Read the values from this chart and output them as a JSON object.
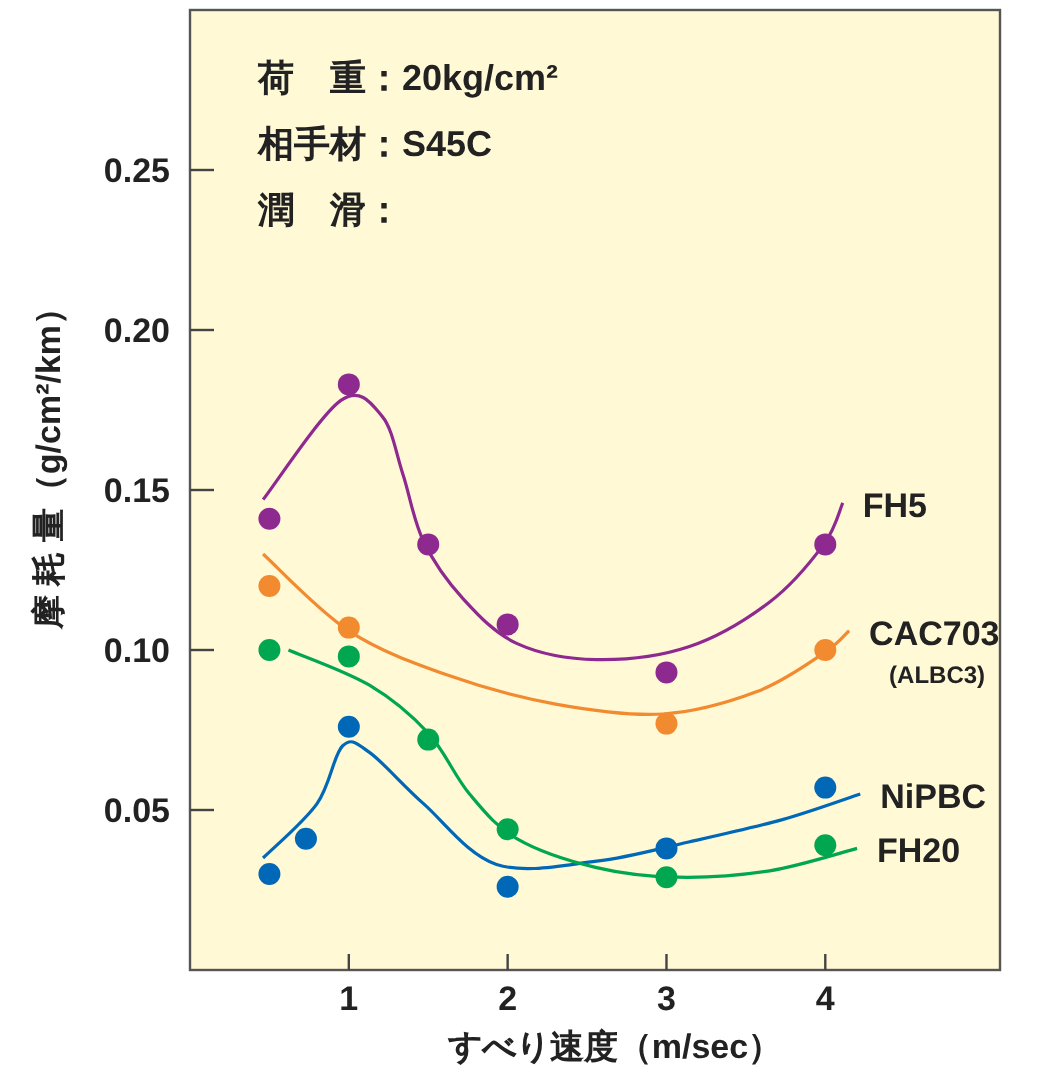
{
  "chart_data": {
    "type": "scatter",
    "xlabel": "すべり速度（m/sec）",
    "ylabel": "摩 耗 量（g/cm²/km）",
    "annotations": [
      "荷　重：20kg/cm²",
      "相手材：S45C",
      "潤　滑："
    ],
    "xlim": [
      0,
      5.1
    ],
    "ylim": [
      0,
      0.3
    ],
    "xticks": [
      1,
      2,
      3,
      4
    ],
    "yticks": [
      0.05,
      {
        "value": 0.1,
        "label": "0.10"
      },
      0.15,
      {
        "value": 0.2,
        "label": "0.20"
      },
      0.25
    ],
    "grid": false,
    "legend": false,
    "marker": "circle",
    "series": [
      {
        "color": "#8e2a8f",
        "x": [
          0.5,
          1,
          1.5,
          2,
          3,
          4
        ],
        "values": [
          0.141,
          0.183,
          0.133,
          0.108,
          0.093,
          0.133
        ]
      },
      {
        "type": "line",
        "marker": "none",
        "name": "FH5",
        "color": "#8e2a8f",
        "x": [
          0.46,
          0.95,
          1.21,
          1.34,
          1.47,
          1.72,
          2.06,
          2.56,
          3.14,
          3.65,
          3.99,
          4.11
        ],
        "values": [
          0.147,
          0.178,
          0.173,
          0.155,
          0.134,
          0.116,
          0.102,
          0.097,
          0.101,
          0.115,
          0.133,
          0.146
        ]
      },
      {
        "color": "#f28a30",
        "x": [
          0.5,
          1,
          3,
          4
        ],
        "values": [
          0.12,
          0.107,
          0.077,
          0.1
        ]
      },
      {
        "type": "line",
        "marker": "none",
        "name": "CAC703 (ALBC3)",
        "color": "#f28a30",
        "x": [
          0.46,
          1.0,
          1.63,
          2.31,
          2.98,
          3.57,
          3.99,
          4.15
        ],
        "values": [
          0.13,
          0.106,
          0.092,
          0.083,
          0.08,
          0.087,
          0.099,
          0.106
        ]
      },
      {
        "color": "#0068b7",
        "x": [
          0.5,
          0.73,
          1,
          2,
          3,
          4
        ],
        "values": [
          0.03,
          0.041,
          0.076,
          0.026,
          0.038,
          0.057
        ]
      },
      {
        "type": "line",
        "marker": "none",
        "name": "NiPBC",
        "color": "#0068b7",
        "x": [
          0.46,
          0.8,
          0.96,
          1.13,
          1.47,
          1.93,
          2.56,
          3.14,
          3.73,
          4.22
        ],
        "values": [
          0.035,
          0.052,
          0.07,
          0.068,
          0.052,
          0.033,
          0.034,
          0.04,
          0.047,
          0.055
        ]
      },
      {
        "color": "#00a650",
        "x": [
          0.5,
          1,
          1.5,
          2,
          3,
          4
        ],
        "values": [
          0.1,
          0.098,
          0.072,
          0.044,
          0.029,
          0.039
        ]
      },
      {
        "type": "line",
        "marker": "none",
        "name": "FH20",
        "color": "#00a650",
        "x": [
          0.62,
          1.13,
          1.5,
          1.76,
          2.06,
          2.56,
          3.07,
          3.65,
          4.2
        ],
        "values": [
          0.1,
          0.089,
          0.074,
          0.055,
          0.041,
          0.032,
          0.029,
          0.031,
          0.038
        ]
      }
    ]
  }
}
